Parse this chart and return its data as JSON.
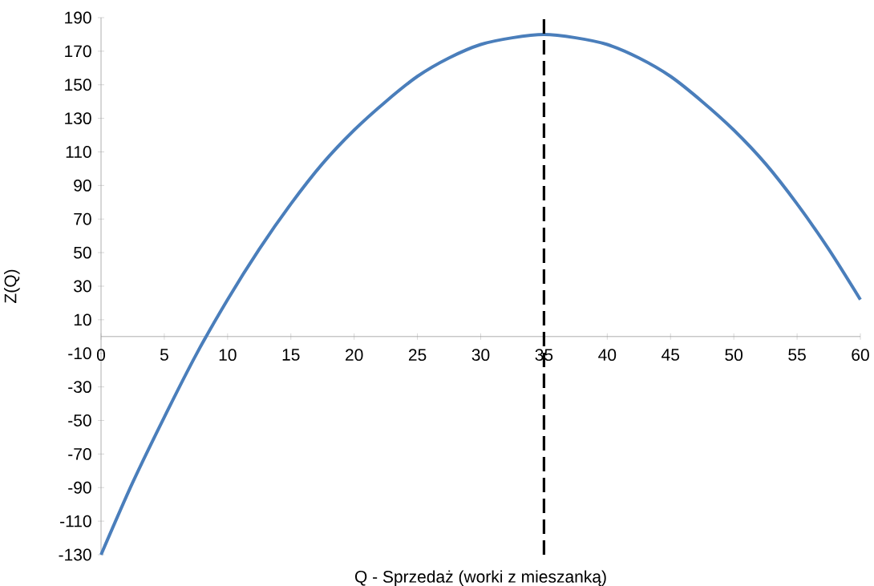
{
  "chart_data": {
    "type": "line",
    "xlabel": "Q - Sprzedaż (worki z mieszanką)",
    "ylabel": "Z(Q)",
    "x": [
      0,
      2.5,
      5,
      7.5,
      10,
      12.5,
      15,
      17.5,
      20,
      22.5,
      25,
      27.5,
      30,
      32.5,
      35,
      37.5,
      40,
      42.5,
      45,
      47.5,
      50,
      52.5,
      55,
      57.5,
      60
    ],
    "series": [
      {
        "color": "#4a7ebb",
        "values": [
          -130,
          -87,
          -48,
          -11,
          22,
          52,
          79,
          103,
          123,
          140,
          155,
          166,
          174,
          178,
          180,
          178,
          174,
          166,
          155,
          140,
          123,
          103,
          79,
          52,
          22
        ]
      }
    ],
    "xlim": [
      0,
      60
    ],
    "xticks": [
      0,
      5,
      10,
      15,
      20,
      25,
      30,
      35,
      40,
      45,
      50,
      55,
      60
    ],
    "ylim": [
      -130,
      190
    ],
    "yticks": [
      -130,
      -110,
      -90,
      -70,
      -50,
      -30,
      -10,
      10,
      30,
      50,
      70,
      90,
      110,
      130,
      150,
      170,
      190
    ],
    "ref_lines": [
      {
        "axis": "x",
        "value": 35,
        "color": "#000000",
        "line_style": "dashed"
      }
    ],
    "grid": false,
    "marker": "none",
    "line_style": "solid"
  }
}
